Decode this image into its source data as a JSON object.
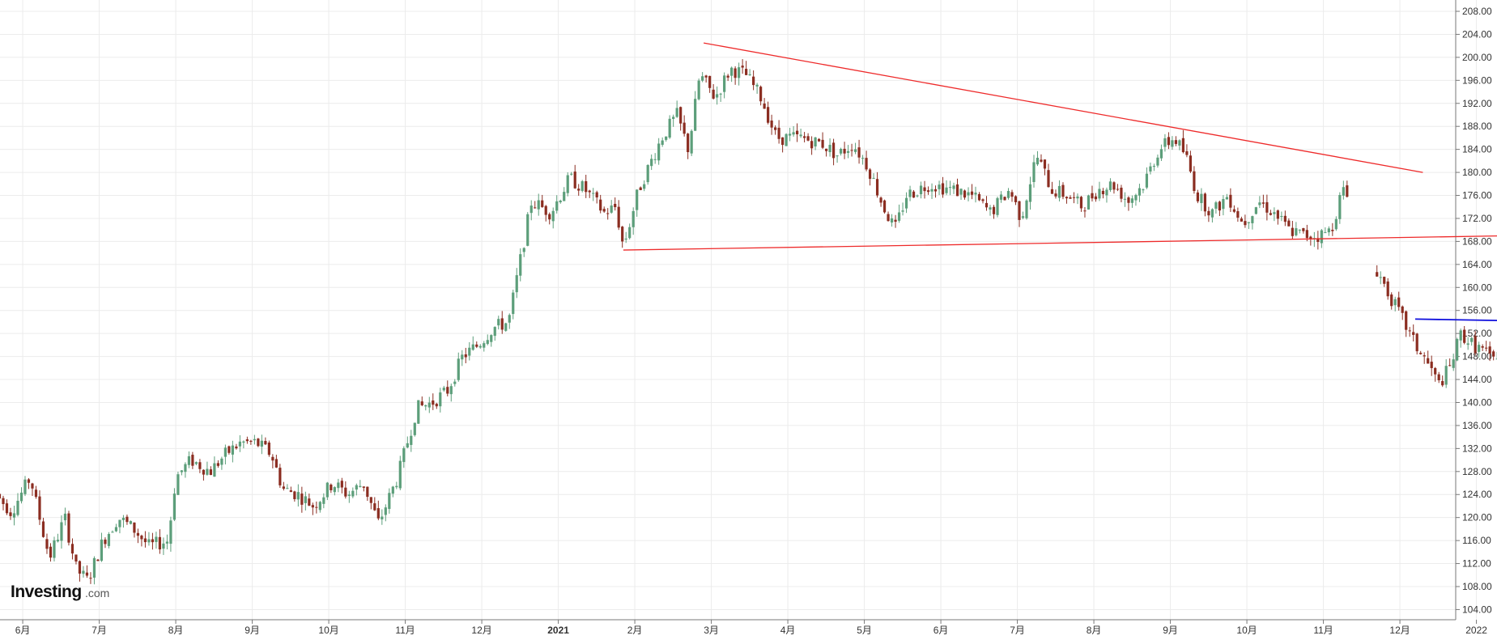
{
  "logo": {
    "main": "Investing",
    "sub": ".com"
  },
  "colors": {
    "up": "#5c9e7a",
    "down": "#8b2d21",
    "grid": "#ececec",
    "trendline_red": "#ee2a2a",
    "trendline_blue": "#1010dd",
    "axis": "#777777"
  },
  "chart_data": {
    "type": "candlestick",
    "title": "",
    "xlabel": "",
    "ylabel": "",
    "ylim": [
      102,
      210
    ],
    "y_ticks": [
      "104.00",
      "108.00",
      "112.00",
      "116.00",
      "120.00",
      "124.00",
      "128.00",
      "132.00",
      "136.00",
      "140.00",
      "144.00",
      "148.00",
      "152.00",
      "156.00",
      "160.00",
      "164.00",
      "168.00",
      "172.00",
      "176.00",
      "180.00",
      "184.00",
      "188.00",
      "192.00",
      "196.00",
      "200.00",
      "204.00",
      "208.00"
    ],
    "x_ticks": [
      {
        "label": "6月",
        "t": 0.35,
        "bold": false
      },
      {
        "label": "7月",
        "t": 1.35,
        "bold": false
      },
      {
        "label": "8月",
        "t": 2.35,
        "bold": false
      },
      {
        "label": "9月",
        "t": 3.35,
        "bold": false
      },
      {
        "label": "10月",
        "t": 4.35,
        "bold": false
      },
      {
        "label": "11月",
        "t": 5.35,
        "bold": false
      },
      {
        "label": "12月",
        "t": 6.35,
        "bold": false
      },
      {
        "label": "2021",
        "t": 7.35,
        "bold": true
      },
      {
        "label": "2月",
        "t": 8.35,
        "bold": false
      },
      {
        "label": "3月",
        "t": 9.35,
        "bold": false
      },
      {
        "label": "4月",
        "t": 10.35,
        "bold": false
      },
      {
        "label": "5月",
        "t": 11.35,
        "bold": false
      },
      {
        "label": "6月",
        "t": 12.35,
        "bold": false
      },
      {
        "label": "7月",
        "t": 13.35,
        "bold": false
      },
      {
        "label": "8月",
        "t": 14.35,
        "bold": false
      },
      {
        "label": "9月",
        "t": 15.35,
        "bold": false
      },
      {
        "label": "10月",
        "t": 16.35,
        "bold": false
      },
      {
        "label": "11月",
        "t": 17.35,
        "bold": false
      },
      {
        "label": "12月",
        "t": 18.35,
        "bold": false
      },
      {
        "label": "2022",
        "t": 19.35,
        "bold": false
      }
    ],
    "price_path": [
      {
        "t": 0.0,
        "p": 124
      },
      {
        "t": 0.2,
        "p": 121
      },
      {
        "t": 0.45,
        "p": 127
      },
      {
        "t": 0.55,
        "p": 121
      },
      {
        "t": 0.7,
        "p": 113
      },
      {
        "t": 0.9,
        "p": 120
      },
      {
        "t": 1.05,
        "p": 111
      },
      {
        "t": 1.2,
        "p": 109
      },
      {
        "t": 1.4,
        "p": 116
      },
      {
        "t": 1.6,
        "p": 120
      },
      {
        "t": 1.8,
        "p": 118
      },
      {
        "t": 2.0,
        "p": 115
      },
      {
        "t": 2.25,
        "p": 116
      },
      {
        "t": 2.35,
        "p": 127
      },
      {
        "t": 2.55,
        "p": 130
      },
      {
        "t": 2.8,
        "p": 128
      },
      {
        "t": 3.0,
        "p": 131
      },
      {
        "t": 3.2,
        "p": 133
      },
      {
        "t": 3.4,
        "p": 133
      },
      {
        "t": 3.6,
        "p": 131
      },
      {
        "t": 3.75,
        "p": 125
      },
      {
        "t": 3.95,
        "p": 124
      },
      {
        "t": 4.15,
        "p": 122
      },
      {
        "t": 4.4,
        "p": 126
      },
      {
        "t": 4.6,
        "p": 124
      },
      {
        "t": 4.8,
        "p": 126
      },
      {
        "t": 5.0,
        "p": 119
      },
      {
        "t": 5.25,
        "p": 127
      },
      {
        "t": 5.5,
        "p": 139
      },
      {
        "t": 5.7,
        "p": 140
      },
      {
        "t": 5.9,
        "p": 142
      },
      {
        "t": 6.1,
        "p": 148
      },
      {
        "t": 6.3,
        "p": 150
      },
      {
        "t": 6.5,
        "p": 153
      },
      {
        "t": 6.7,
        "p": 154
      },
      {
        "t": 7.0,
        "p": 175
      },
      {
        "t": 7.25,
        "p": 173
      },
      {
        "t": 7.5,
        "p": 179
      },
      {
        "t": 7.7,
        "p": 177
      },
      {
        "t": 7.95,
        "p": 173
      },
      {
        "t": 8.1,
        "p": 174
      },
      {
        "t": 8.2,
        "p": 167
      },
      {
        "t": 8.4,
        "p": 177
      },
      {
        "t": 8.7,
        "p": 186
      },
      {
        "t": 8.9,
        "p": 190
      },
      {
        "t": 9.05,
        "p": 184
      },
      {
        "t": 9.2,
        "p": 197
      },
      {
        "t": 9.4,
        "p": 193
      },
      {
        "t": 9.6,
        "p": 198
      },
      {
        "t": 9.8,
        "p": 197
      },
      {
        "t": 10.0,
        "p": 193
      },
      {
        "t": 10.2,
        "p": 186
      },
      {
        "t": 10.5,
        "p": 186
      },
      {
        "t": 10.8,
        "p": 185
      },
      {
        "t": 11.0,
        "p": 183
      },
      {
        "t": 11.2,
        "p": 185
      },
      {
        "t": 11.4,
        "p": 181
      },
      {
        "t": 11.6,
        "p": 174
      },
      {
        "t": 11.75,
        "p": 170
      },
      {
        "t": 11.9,
        "p": 176
      },
      {
        "t": 12.2,
        "p": 178
      },
      {
        "t": 12.5,
        "p": 177
      },
      {
        "t": 12.75,
        "p": 176
      },
      {
        "t": 13.0,
        "p": 173
      },
      {
        "t": 13.25,
        "p": 177
      },
      {
        "t": 13.4,
        "p": 172
      },
      {
        "t": 13.6,
        "p": 183
      },
      {
        "t": 13.8,
        "p": 177
      },
      {
        "t": 14.0,
        "p": 176
      },
      {
        "t": 14.2,
        "p": 174
      },
      {
        "t": 14.4,
        "p": 177
      },
      {
        "t": 14.6,
        "p": 178
      },
      {
        "t": 14.8,
        "p": 175
      },
      {
        "t": 15.0,
        "p": 178
      },
      {
        "t": 15.2,
        "p": 184
      },
      {
        "t": 15.4,
        "p": 186
      },
      {
        "t": 15.55,
        "p": 183
      },
      {
        "t": 15.7,
        "p": 176
      },
      {
        "t": 15.9,
        "p": 173
      },
      {
        "t": 16.1,
        "p": 176
      },
      {
        "t": 16.3,
        "p": 171
      },
      {
        "t": 16.5,
        "p": 175
      },
      {
        "t": 16.7,
        "p": 173
      },
      {
        "t": 16.9,
        "p": 170
      },
      {
        "t": 17.1,
        "p": 169
      },
      {
        "t": 17.3,
        "p": 169
      },
      {
        "t": 17.45,
        "p": 170
      },
      {
        "t": 17.6,
        "p": 177
      },
      {
        "t": 17.7,
        "p": 175
      }
    ],
    "price_path_2": [
      {
        "t": 18.05,
        "p": 163
      },
      {
        "t": 18.2,
        "p": 159
      },
      {
        "t": 18.4,
        "p": 154
      },
      {
        "t": 18.55,
        "p": 150
      },
      {
        "t": 18.75,
        "p": 146
      },
      {
        "t": 18.85,
        "p": 143
      },
      {
        "t": 19.0,
        "p": 146
      },
      {
        "t": 19.15,
        "p": 152
      },
      {
        "t": 19.3,
        "p": 150
      },
      {
        "t": 19.45,
        "p": 149
      },
      {
        "t": 19.55,
        "p": 147
      },
      {
        "t": 19.7,
        "p": 150
      },
      {
        "t": 19.8,
        "p": 153
      }
    ],
    "trendlines": [
      {
        "color": "red",
        "from": {
          "t": 9.25,
          "p": 202.5
        },
        "to": {
          "t": 18.65,
          "p": 180
        }
      },
      {
        "color": "red",
        "from": {
          "t": 8.2,
          "p": 166.5
        },
        "to": {
          "t": 19.85,
          "p": 169
        }
      },
      {
        "color": "blue",
        "from": {
          "t": 18.55,
          "p": 154.5
        },
        "to": {
          "t": 19.85,
          "p": 154.2
        }
      }
    ]
  }
}
